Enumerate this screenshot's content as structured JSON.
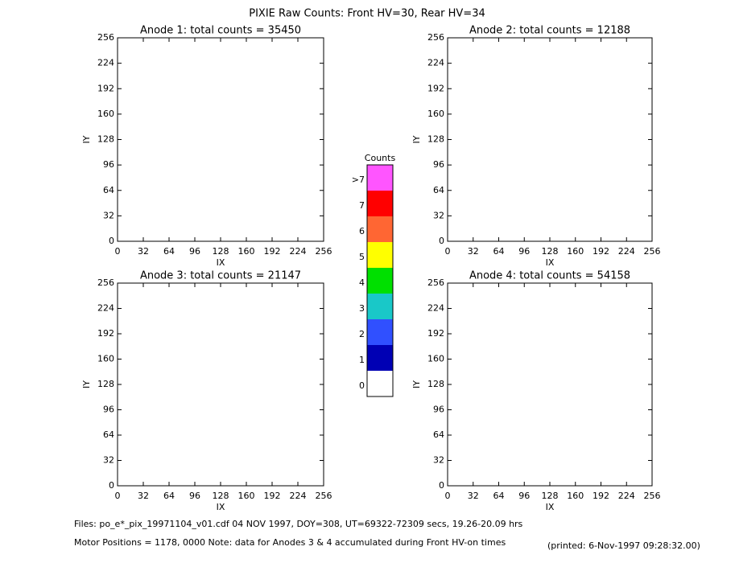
{
  "title": "PIXIE Raw Counts:  Front HV=30, Rear HV=34",
  "chart_data": [
    {
      "type": "heatmap",
      "title": "Anode 1: total counts = 35450",
      "x_label": "IX",
      "y_label": "IY",
      "xlim": [
        0,
        256
      ],
      "ylim": [
        0,
        256
      ],
      "xticks": [
        0,
        32,
        64,
        96,
        128,
        160,
        192,
        224,
        256
      ],
      "yticks": [
        0,
        32,
        64,
        96,
        128,
        160,
        192,
        224,
        256
      ]
    },
    {
      "type": "heatmap",
      "title": "Anode 2: total counts = 12188",
      "x_label": "IX",
      "y_label": "IY",
      "xlim": [
        0,
        256
      ],
      "ylim": [
        0,
        256
      ],
      "xticks": [
        0,
        32,
        64,
        96,
        128,
        160,
        192,
        224,
        256
      ],
      "yticks": [
        0,
        32,
        64,
        96,
        128,
        160,
        192,
        224,
        256
      ]
    },
    {
      "type": "heatmap",
      "title": "Anode 3: total counts = 21147",
      "x_label": "IX",
      "y_label": "IY",
      "xlim": [
        0,
        256
      ],
      "ylim": [
        0,
        256
      ],
      "xticks": [
        0,
        32,
        64,
        96,
        128,
        160,
        192,
        224,
        256
      ],
      "yticks": [
        0,
        32,
        64,
        96,
        128,
        160,
        192,
        224,
        256
      ]
    },
    {
      "type": "heatmap",
      "title": "Anode 4: total counts = 54158",
      "x_label": "IX",
      "y_label": "IY",
      "xlim": [
        0,
        256
      ],
      "ylim": [
        0,
        256
      ],
      "xticks": [
        0,
        32,
        64,
        96,
        128,
        160,
        192,
        224,
        256
      ],
      "yticks": [
        0,
        32,
        64,
        96,
        128,
        160,
        192,
        224,
        256
      ]
    }
  ],
  "colorbar": {
    "title": "Counts",
    "labels": [
      0,
      1,
      2,
      3,
      4,
      5,
      6,
      7,
      ">7"
    ],
    "colors": [
      "#ffffff",
      "#0000b4",
      "#3050ff",
      "#19c8c8",
      "#00e000",
      "#ffff00",
      "#ff6633",
      "#ff0000",
      "#ff55ff"
    ]
  },
  "footer": {
    "files": "Files: po_e*_pix_19971104_v01.cdf    04 NOV 1997, DOY=308, UT=69322-72309 secs, 19.26-20.09 hrs",
    "motor": "Motor Positions = 1178, 0000   Note: data for Anodes 3 & 4 accumulated during Front HV-on times",
    "printed": "(printed:  6-Nov-1997 09:28:32.00)"
  }
}
